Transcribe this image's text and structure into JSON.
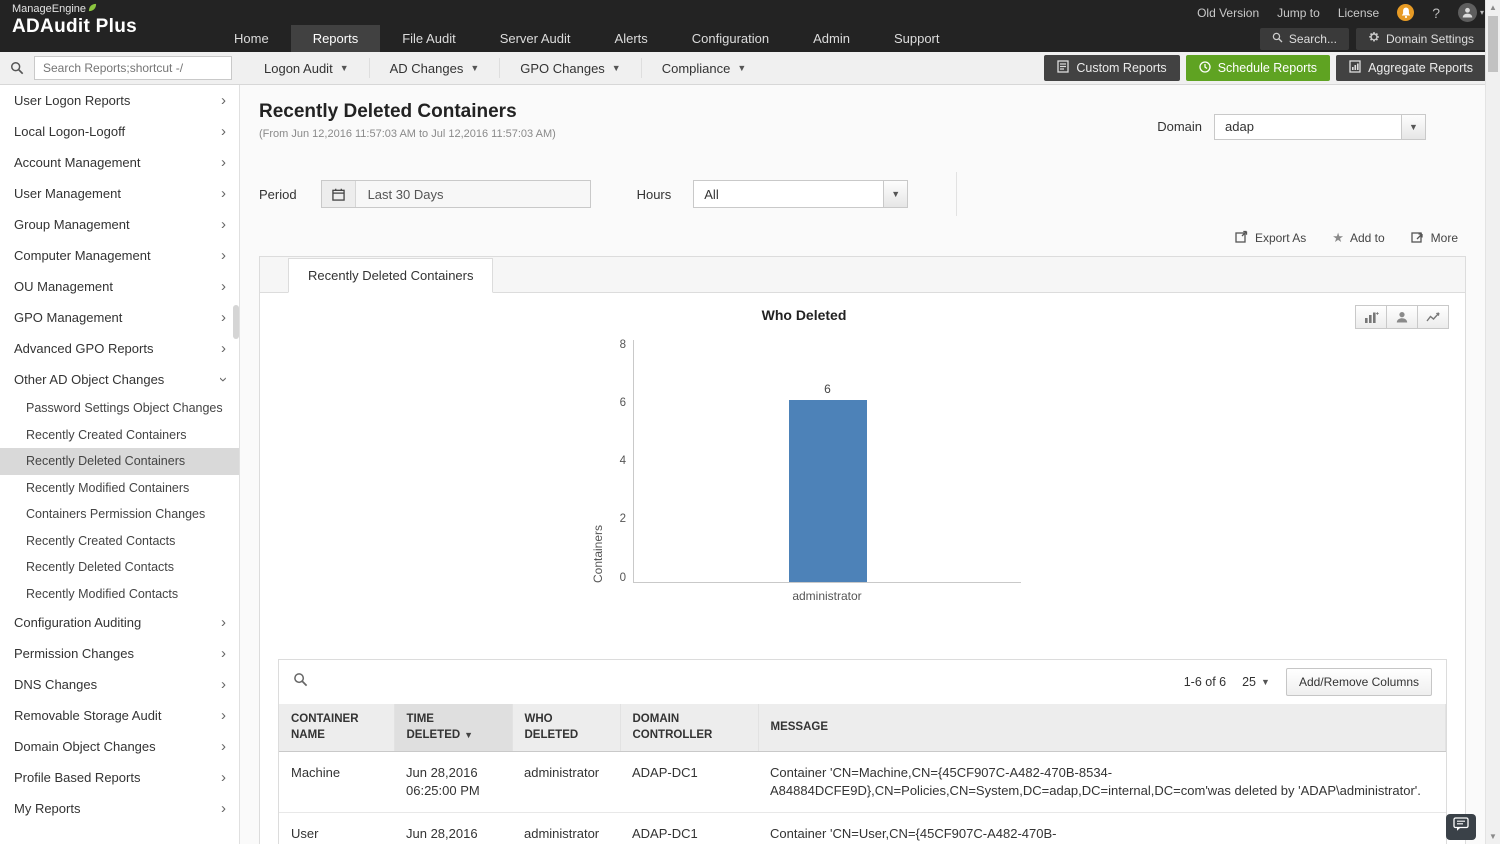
{
  "colors": {
    "topbar_bg": "#232323",
    "accent_green": "#5fa322",
    "badge_orange": "#e79b25",
    "bar_blue": "#4d82b8",
    "selected_item_bg": "#d9d9d9"
  },
  "topbar": {
    "brand": {
      "line1": "ManageEngine",
      "line2": "ADAudit Plus"
    },
    "utility": {
      "old_version": "Old Version",
      "jump_to": "Jump to",
      "license": "License",
      "help": "?"
    },
    "nav": [
      {
        "label": "Home"
      },
      {
        "label": "Reports",
        "active": true
      },
      {
        "label": "File Audit"
      },
      {
        "label": "Server Audit"
      },
      {
        "label": "Alerts"
      },
      {
        "label": "Configuration"
      },
      {
        "label": "Admin"
      },
      {
        "label": "Support"
      }
    ],
    "search_button": "Search...",
    "domain_settings_button": "Domain Settings"
  },
  "toolbar": {
    "search_placeholder": "Search Reports;shortcut -/",
    "menus": [
      {
        "label": "Logon Audit"
      },
      {
        "label": "AD Changes"
      },
      {
        "label": "GPO Changes"
      },
      {
        "label": "Compliance"
      }
    ],
    "buttons": {
      "custom_reports": "Custom Reports",
      "schedule_reports": "Schedule Reports",
      "aggregate_reports": "Aggregate Reports"
    }
  },
  "sidebar": {
    "items": [
      {
        "label": "User Logon Reports"
      },
      {
        "label": "Local Logon-Logoff"
      },
      {
        "label": "Account Management"
      },
      {
        "label": "User Management"
      },
      {
        "label": "Group Management"
      },
      {
        "label": "Computer Management"
      },
      {
        "label": "OU Management"
      },
      {
        "label": "GPO Management"
      },
      {
        "label": "Advanced GPO Reports"
      },
      {
        "label": "Other AD Object Changes",
        "expanded": true
      },
      {
        "label": "Configuration Auditing"
      },
      {
        "label": "Permission Changes"
      },
      {
        "label": "DNS Changes"
      },
      {
        "label": "Removable Storage Audit"
      },
      {
        "label": "Domain Object Changes"
      },
      {
        "label": "Profile Based Reports"
      },
      {
        "label": "My Reports"
      }
    ],
    "sub_items": [
      {
        "label": "Password Settings Object Changes"
      },
      {
        "label": "Recently Created Containers"
      },
      {
        "label": "Recently Deleted Containers",
        "selected": true
      },
      {
        "label": "Recently Modified Containers"
      },
      {
        "label": "Containers Permission Changes"
      },
      {
        "label": "Recently Created Contacts"
      },
      {
        "label": "Recently Deleted Contacts"
      },
      {
        "label": "Recently Modified Contacts"
      }
    ]
  },
  "report": {
    "title": "Recently Deleted Containers",
    "date_range": "(From Jun 12,2016 11:57:03 AM to Jul 12,2016 11:57:03 AM)",
    "domain_label": "Domain",
    "domain_value": "adap",
    "period_label": "Period",
    "period_value": "Last 30 Days",
    "hours_label": "Hours",
    "hours_value": "All",
    "actions": {
      "export_as": "Export As",
      "add_to": "Add to",
      "more": "More"
    },
    "tab_label": "Recently Deleted Containers"
  },
  "chart_data": {
    "type": "bar",
    "title": "Who Deleted",
    "categories": [
      "administrator"
    ],
    "values": [
      6
    ],
    "ylabel": "Containers",
    "ylim": [
      0,
      8
    ],
    "ytick_labels": [
      "8",
      "6",
      "4",
      "2",
      "0"
    ],
    "bar_color": "#4d82b8",
    "grid": false,
    "data_labels": true,
    "legend": "none"
  },
  "table": {
    "pagination": "1-6 of 6",
    "page_size": "25",
    "columns_button": "Add/Remove Columns",
    "columns": [
      "CONTAINER NAME",
      "TIME DELETED",
      "WHO DELETED",
      "DOMAIN CONTROLLER",
      "MESSAGE"
    ],
    "sorted_column": "TIME DELETED",
    "rows": [
      {
        "container_name": "Machine",
        "time_deleted": "Jun 28,2016 06:25:00 PM",
        "who_deleted": "administrator",
        "domain_controller": "ADAP-DC1",
        "message": "Container 'CN=Machine,CN={45CF907C-A482-470B-8534-A84884DCFE9D},CN=Policies,CN=System,DC=adap,DC=internal,DC=com'was deleted by 'ADAP\\administrator'."
      },
      {
        "container_name": "User",
        "time_deleted": "Jun 28,2016",
        "who_deleted": "administrator",
        "domain_controller": "ADAP-DC1",
        "message": "Container 'CN=User,CN={45CF907C-A482-470B-"
      }
    ]
  }
}
